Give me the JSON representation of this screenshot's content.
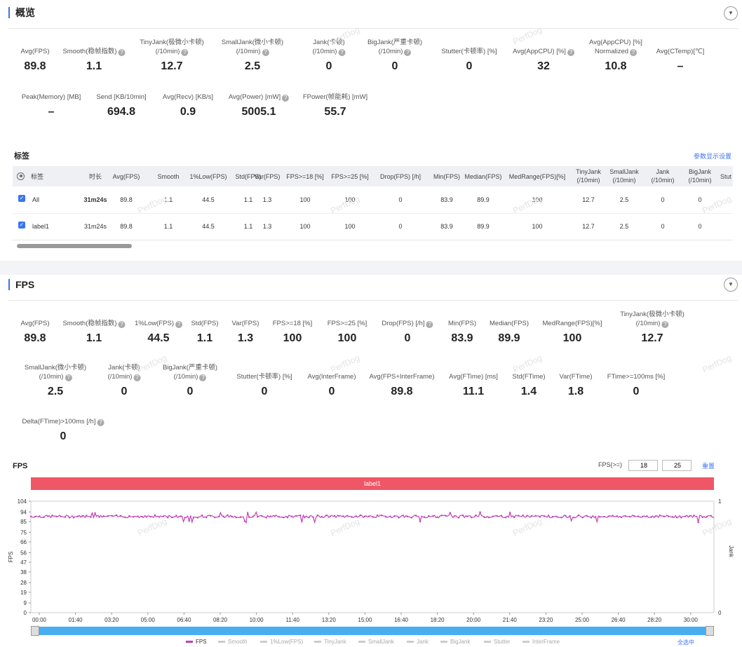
{
  "overview": {
    "title": "概览",
    "row1": [
      {
        "label": "Avg(FPS)",
        "value": "89.8",
        "q": false
      },
      {
        "label": "Smooth(稳帧指数)",
        "value": "1.1",
        "q": true
      },
      {
        "label": "TinyJank(极微小卡顿)\n(/10min)",
        "value": "12.7",
        "q": true
      },
      {
        "label": "SmallJank(微小卡顿)\n(/10min)",
        "value": "2.5",
        "q": true
      },
      {
        "label": "Jank(卡顿)\n(/10min)",
        "value": "0",
        "q": true
      },
      {
        "label": "BigJank(严重卡顿)\n(/10min)",
        "value": "0",
        "q": true
      },
      {
        "label": "Stutter(卡顿率) [%]",
        "value": "0",
        "q": false
      },
      {
        "label": "Avg(AppCPU) [%]",
        "value": "32",
        "q": true
      },
      {
        "label": "Avg(AppCPU) [%]\nNormalized",
        "value": "10.8",
        "q": true
      },
      {
        "label": "Avg(CTemp)[℃]",
        "value": "–",
        "q": false
      }
    ],
    "row2": [
      {
        "label": "Peak(Memory) [MB]",
        "value": "–",
        "q": false
      },
      {
        "label": "Send [KB/10min]",
        "value": "694.8",
        "q": false
      },
      {
        "label": "Avg(Recv) [KB/s]",
        "value": "0.9",
        "q": false
      },
      {
        "label": "Avg(Power) [mW]",
        "value": "5005.1",
        "q": true
      },
      {
        "label": "FPower(帧能耗) [mW]",
        "value": "55.7",
        "q": false
      }
    ]
  },
  "tags": {
    "title": "标签",
    "settings_link": "参数显示设置",
    "headers": [
      "标签",
      "时长",
      "Avg(FPS)",
      "Smooth",
      "1%Low(FPS)",
      "Std(FPS)",
      "Var(FPS)",
      "FPS>=18 [%]",
      "FPS>=25 [%]",
      "Drop(FPS) [/h]",
      "Min(FPS)",
      "Median(FPS)",
      "MedRange(FPS)[%]",
      "TinyJank\n(/10min)",
      "SmallJank\n(/10min)",
      "Jank\n(/10min)",
      "BigJank\n(/10min)",
      "Stut"
    ],
    "rows": [
      {
        "name": "All",
        "cells": [
          "31m24s",
          "89.8",
          "1.1",
          "44.5",
          "1.1",
          "1.3",
          "100",
          "100",
          "0",
          "83.9",
          "89.9",
          "100",
          "12.7",
          "2.5",
          "0",
          "0"
        ]
      },
      {
        "name": "label1",
        "cells": [
          "31m24s",
          "89.8",
          "1.1",
          "44.5",
          "1.1",
          "1.3",
          "100",
          "100",
          "0",
          "83.9",
          "89.9",
          "100",
          "12.7",
          "2.5",
          "0",
          "0"
        ]
      }
    ]
  },
  "fps": {
    "title": "FPS",
    "row1": [
      {
        "label": "Avg(FPS)",
        "value": "89.8",
        "q": false
      },
      {
        "label": "Smooth(稳帧指数)",
        "value": "1.1",
        "q": true
      },
      {
        "label": "1%Low(FPS)",
        "value": "44.5",
        "q": true
      },
      {
        "label": "Std(FPS)",
        "value": "1.1",
        "q": false
      },
      {
        "label": "Var(FPS)",
        "value": "1.3",
        "q": false
      },
      {
        "label": "FPS>=18 [%]",
        "value": "100",
        "q": false
      },
      {
        "label": "FPS>=25 [%]",
        "value": "100",
        "q": false
      },
      {
        "label": "Drop(FPS) [/h]",
        "value": "0",
        "q": true
      },
      {
        "label": "Min(FPS)",
        "value": "83.9",
        "q": false
      },
      {
        "label": "Median(FPS)",
        "value": "89.9",
        "q": false
      },
      {
        "label": "MedRange(FPS)[%]",
        "value": "100",
        "q": false
      },
      {
        "label": "TinyJank(极微小卡顿)\n(/10min)",
        "value": "12.7",
        "q": true
      }
    ],
    "row2": [
      {
        "label": "SmallJank(微小卡顿)\n(/10min)",
        "value": "2.5",
        "q": true
      },
      {
        "label": "Jank(卡顿)\n(/10min)",
        "value": "0",
        "q": true
      },
      {
        "label": "BigJank(严重卡顿)\n(/10min)",
        "value": "0",
        "q": true
      },
      {
        "label": "Stutter(卡顿率) [%]",
        "value": "0",
        "q": false
      },
      {
        "label": "Avg(InterFrame)",
        "value": "0",
        "q": false
      },
      {
        "label": "Avg(FPS+InterFrame)",
        "value": "89.8",
        "q": false
      },
      {
        "label": "Avg(FTime) [ms]",
        "value": "11.1",
        "q": false
      },
      {
        "label": "Std(FTime)",
        "value": "1.4",
        "q": false
      },
      {
        "label": "Var(FTime)",
        "value": "1.8",
        "q": false
      },
      {
        "label": "FTime>=100ms [%]",
        "value": "0",
        "q": false
      }
    ],
    "row3": [
      {
        "label": "Delta(FTime)>100ms [/h]",
        "value": "0",
        "q": true
      }
    ]
  },
  "chart_data": {
    "type": "line",
    "title": "FPS",
    "ylabel": "FPS",
    "y2label": "Jank",
    "band_label": "label1",
    "fps_threshold_label": "FPS(>=)",
    "threshold1": "18",
    "threshold2": "25",
    "reset_label": "重置",
    "yticks": [
      "104",
      "94",
      "85",
      "75",
      "66",
      "56",
      "47",
      "38",
      "28",
      "19",
      "9",
      "0"
    ],
    "y2ticks": [
      "1",
      "0"
    ],
    "xticks": [
      "00:00",
      "01:40",
      "03:20",
      "05:00",
      "06:40",
      "08:20",
      "10:00",
      "11:40",
      "13:20",
      "15:00",
      "16:40",
      "18:20",
      "20:00",
      "21:40",
      "23:20",
      "25:00",
      "26:40",
      "28:20",
      "30:00"
    ],
    "ylim": [
      0,
      104
    ],
    "series": [
      {
        "name": "FPS",
        "color": "#c23fb5",
        "mean": 89.8,
        "min": 83.9,
        "max": 94
      }
    ],
    "legend": [
      "FPS",
      "Smooth",
      "1%Low(FPS)",
      "TinyJank",
      "SmallJank",
      "Jank",
      "BigJank",
      "Stutter",
      "InterFrame"
    ],
    "select_all": "全选中"
  },
  "watermark": "PerfDog"
}
